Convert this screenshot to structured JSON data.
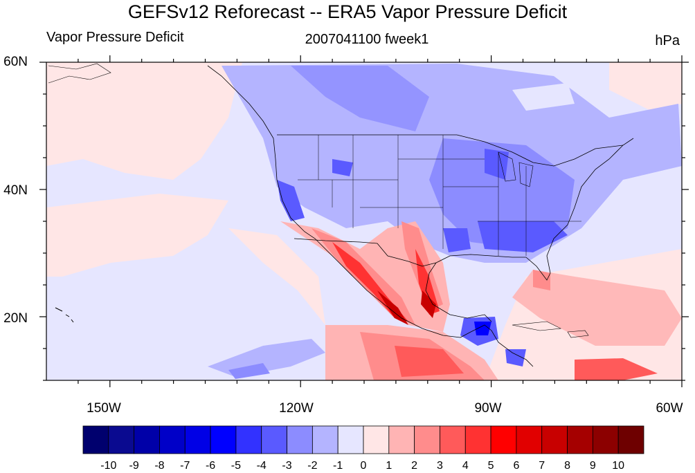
{
  "title": "GEFSv12 Reforecast -- ERA5 Vapor Pressure Deficit",
  "left_string": "Vapor Pressure Deficit",
  "center_string": "2007041100 fweek1",
  "right_string": "hPa",
  "map": {
    "lat_labels": [
      "60N",
      "40N",
      "20N"
    ],
    "lon_labels": [
      "150W",
      "120W",
      "90W",
      "60W"
    ],
    "lat_range": [
      10,
      60
    ],
    "lon_range": [
      -160,
      -60
    ]
  },
  "colorbar": {
    "labels": [
      "-10",
      "-9",
      "-8",
      "-7",
      "-6",
      "-5",
      "-4",
      "-3",
      "-2",
      "-1",
      "0",
      "1",
      "2",
      "3",
      "4",
      "5",
      "6",
      "7",
      "8",
      "9",
      "10"
    ],
    "colors": [
      "#00006e",
      "#0a0a90",
      "#0000a8",
      "#0000c8",
      "#0000e6",
      "#0000ff",
      "#3232ff",
      "#5a5aff",
      "#8c8cff",
      "#b4b4ff",
      "#e6e6ff",
      "#ffe6e6",
      "#ffb4b4",
      "#ff8c8c",
      "#ff5a5a",
      "#ff3232",
      "#ff0000",
      "#e10000",
      "#c80000",
      "#a50000",
      "#8c0000",
      "#6e0000"
    ]
  }
}
